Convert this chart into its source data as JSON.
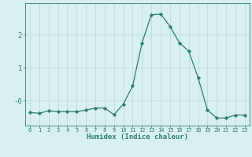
{
  "xlabel": "Humidex (Indice chaleur)",
  "x_values": [
    0,
    1,
    2,
    3,
    4,
    5,
    6,
    7,
    8,
    9,
    10,
    11,
    12,
    13,
    14,
    15,
    16,
    17,
    18,
    19,
    20,
    21,
    22,
    23
  ],
  "y_values": [
    -0.35,
    -0.38,
    -0.3,
    -0.33,
    -0.33,
    -0.33,
    -0.28,
    -0.22,
    -0.22,
    -0.42,
    -0.1,
    0.45,
    1.75,
    2.6,
    2.62,
    2.25,
    1.75,
    1.5,
    0.7,
    -0.28,
    -0.52,
    -0.52,
    -0.43,
    -0.43
  ],
  "line_color": "#2e7d6d",
  "marker": "D",
  "marker_size": 2.2,
  "bg_color": "#d8f0f0",
  "grid_color": "#bcdcdc",
  "tick_color": "#2e7d6d",
  "ylim": [
    -0.75,
    2.95
  ],
  "yticks": [
    0,
    1,
    2
  ],
  "ytick_labels": [
    "-0",
    "1",
    "2"
  ],
  "linewidth": 0.9
}
